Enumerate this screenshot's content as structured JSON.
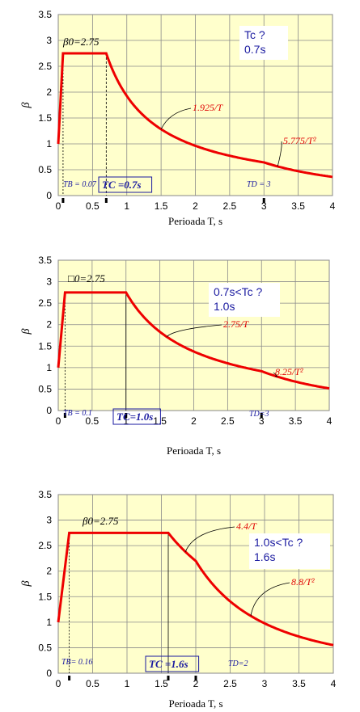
{
  "chart_data": [
    {
      "type": "line",
      "xlabel": "Perioada T, s",
      "ylabel": "β",
      "xlim": [
        0,
        4
      ],
      "ylim": [
        0,
        3.5
      ],
      "x_ticks": [
        "0",
        "0.5",
        "1",
        "1.5",
        "2",
        "2.5",
        "3",
        "3.5",
        "4"
      ],
      "y_ticks": [
        "0",
        "0.5",
        "1",
        "1.5",
        "2",
        "2.5",
        "3",
        "3.5"
      ],
      "beta0": 2.75,
      "TB": 0.07,
      "TC": 0.7,
      "TD": 3,
      "series": [
        {
          "x": [
            0,
            0.07,
            0.7,
            1.0,
            1.5,
            2.0,
            2.5,
            3.0,
            3.5,
            4.0
          ],
          "y": [
            1.0,
            2.75,
            2.75,
            1.925,
            1.283,
            0.963,
            0.77,
            0.642,
            0.471,
            0.361
          ]
        }
      ],
      "labels": {
        "beta0": "β0=2.75",
        "tb": "TB = 0.07",
        "tc": "TC =0.7s",
        "td": "TD = 3",
        "branch1": "1.925/T",
        "branch2": "5.775/T²"
      },
      "infobox": [
        "Tc ?",
        "0.7s"
      ]
    },
    {
      "type": "line",
      "xlabel": "Perioada T, s",
      "ylabel": "β",
      "xlim": [
        0,
        4
      ],
      "ylim": [
        0,
        3.5
      ],
      "x_ticks": [
        "0",
        "0.5",
        "1",
        "1.5",
        "2",
        "2.5",
        "3",
        "3.5",
        "4"
      ],
      "y_ticks": [
        "0",
        "0.5",
        "1",
        "1.5",
        "2",
        "2.5",
        "3",
        "3.5"
      ],
      "beta0": 2.75,
      "TB": 0.1,
      "TC": 1.0,
      "TD": 3,
      "series": [
        {
          "x": [
            0,
            0.1,
            1.0,
            1.5,
            2.0,
            2.5,
            3.0,
            3.5,
            4.0
          ],
          "y": [
            1.0,
            2.75,
            2.75,
            1.833,
            1.375,
            1.1,
            0.917,
            0.673,
            0.516
          ]
        }
      ],
      "labels": {
        "beta0": "□0=2.75",
        "tb": "TB = 0.1",
        "tc": "TC=1.0s",
        "td": "TD=3",
        "branch1": "2.75/T",
        "branch2": "8.25/T²"
      },
      "infobox": [
        "0.7s<Tc ?",
        "1.0s"
      ]
    },
    {
      "type": "line",
      "xlabel": "Perioada T, s",
      "ylabel": "β",
      "xlim": [
        0,
        4
      ],
      "ylim": [
        0,
        3.5
      ],
      "x_ticks": [
        "0",
        "0.5",
        "1",
        "1.5",
        "2",
        "2.5",
        "3",
        "3.5",
        "4"
      ],
      "y_ticks": [
        "0",
        "0.5",
        "1",
        "1.5",
        "2",
        "2.5",
        "3",
        "3.5"
      ],
      "beta0": 2.75,
      "TB": 0.16,
      "TC": 1.6,
      "TD": 2,
      "series": [
        {
          "x": [
            0,
            0.16,
            1.6,
            1.75,
            2.0,
            2.5,
            3.0,
            3.5,
            4.0
          ],
          "y": [
            1.0,
            2.75,
            2.75,
            2.514,
            2.2,
            1.408,
            0.978,
            0.718,
            0.55
          ]
        }
      ],
      "labels": {
        "beta0": "β0=2.75",
        "tb": "TB= 0.16",
        "tc": "TC =1.6s",
        "td": "TD=2",
        "branch1": "4.4/T",
        "branch2": "8.8/T²"
      },
      "infobox": [
        "1.0s<Tc ?",
        "1.6s"
      ]
    }
  ]
}
